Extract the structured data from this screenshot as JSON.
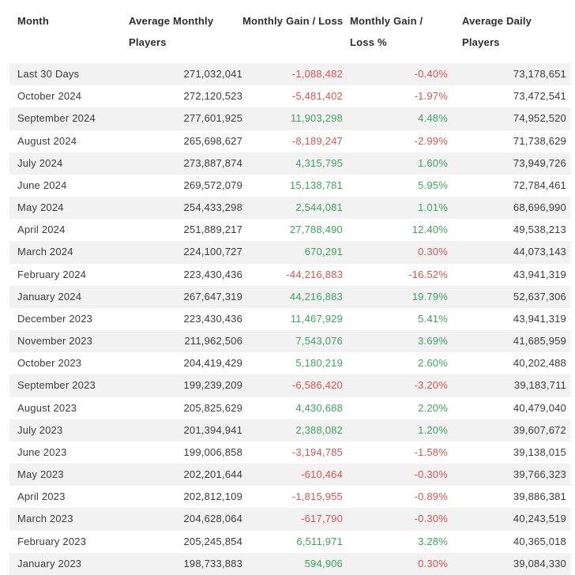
{
  "colors": {
    "positive": "#3da55c",
    "negative": "#d9544f",
    "header_text": "#2d2d2d",
    "body_text": "#3b3b3b",
    "stripe": "#f2f2f2"
  },
  "table": {
    "columns": [
      "Month",
      "Average Monthly Players",
      "Monthly Gain / Loss",
      "Monthly Gain / Loss %",
      "Average Daily Players"
    ],
    "rows": [
      {
        "month": "Last 30 Days",
        "avg_monthly_players": "271,032,041",
        "monthly_gain_loss": "-1,088,482",
        "monthly_gain_loss_pct": "-0.40%",
        "avg_daily_players": "73,178,651",
        "gain_color": "red",
        "pct_color": "red"
      },
      {
        "month": "October 2024",
        "avg_monthly_players": "272,120,523",
        "monthly_gain_loss": "-5,481,402",
        "monthly_gain_loss_pct": "-1.97%",
        "avg_daily_players": "73,472,541",
        "gain_color": "red",
        "pct_color": "red"
      },
      {
        "month": "September 2024",
        "avg_monthly_players": "277,601,925",
        "monthly_gain_loss": "11,903,298",
        "monthly_gain_loss_pct": "4.48%",
        "avg_daily_players": "74,952,520",
        "gain_color": "green",
        "pct_color": "green"
      },
      {
        "month": "August 2024",
        "avg_monthly_players": "265,698,627",
        "monthly_gain_loss": "-8,189,247",
        "monthly_gain_loss_pct": "-2.99%",
        "avg_daily_players": "71,738,629",
        "gain_color": "red",
        "pct_color": "red"
      },
      {
        "month": "July 2024",
        "avg_monthly_players": "273,887,874",
        "monthly_gain_loss": "4,315,795",
        "monthly_gain_loss_pct": "1.60%",
        "avg_daily_players": "73,949,726",
        "gain_color": "green",
        "pct_color": "green"
      },
      {
        "month": "June 2024",
        "avg_monthly_players": "269,572,079",
        "monthly_gain_loss": "15,138,781",
        "monthly_gain_loss_pct": "5.95%",
        "avg_daily_players": "72,784,461",
        "gain_color": "green",
        "pct_color": "green"
      },
      {
        "month": "May 2024",
        "avg_monthly_players": "254,433,298",
        "monthly_gain_loss": "2,544,081",
        "monthly_gain_loss_pct": "1.01%",
        "avg_daily_players": "68,696,990",
        "gain_color": "green",
        "pct_color": "green"
      },
      {
        "month": "April 2024",
        "avg_monthly_players": "251,889,217",
        "monthly_gain_loss": "27,788,490",
        "monthly_gain_loss_pct": "12.40%",
        "avg_daily_players": "49,538,213",
        "gain_color": "green",
        "pct_color": "green"
      },
      {
        "month": "March 2024",
        "avg_monthly_players": "224,100,727",
        "monthly_gain_loss": "670,291",
        "monthly_gain_loss_pct": "0.30%",
        "avg_daily_players": "44,073,143",
        "gain_color": "green",
        "pct_color": "red"
      },
      {
        "month": "February 2024",
        "avg_monthly_players": "223,430,436",
        "monthly_gain_loss": "-44,216,883",
        "monthly_gain_loss_pct": "-16.52%",
        "avg_daily_players": "43,941,319",
        "gain_color": "red",
        "pct_color": "red"
      },
      {
        "month": "January 2024",
        "avg_monthly_players": "267,647,319",
        "monthly_gain_loss": "44,216,883",
        "monthly_gain_loss_pct": "19.79%",
        "avg_daily_players": "52,637,306",
        "gain_color": "green",
        "pct_color": "green"
      },
      {
        "month": "December 2023",
        "avg_monthly_players": "223,430,436",
        "monthly_gain_loss": "11,467,929",
        "monthly_gain_loss_pct": "5.41%",
        "avg_daily_players": "43,941,319",
        "gain_color": "green",
        "pct_color": "green"
      },
      {
        "month": "November 2023",
        "avg_monthly_players": "211,962,506",
        "monthly_gain_loss": "7,543,076",
        "monthly_gain_loss_pct": "3.69%",
        "avg_daily_players": "41,685,959",
        "gain_color": "green",
        "pct_color": "green"
      },
      {
        "month": "October 2023",
        "avg_monthly_players": "204,419,429",
        "monthly_gain_loss": "5,180,219",
        "monthly_gain_loss_pct": "2.60%",
        "avg_daily_players": "40,202,488",
        "gain_color": "green",
        "pct_color": "green"
      },
      {
        "month": "September 2023",
        "avg_monthly_players": "199,239,209",
        "monthly_gain_loss": "-6,586,420",
        "monthly_gain_loss_pct": "-3.20%",
        "avg_daily_players": "39,183,711",
        "gain_color": "red",
        "pct_color": "red"
      },
      {
        "month": "August 2023",
        "avg_monthly_players": "205,825,629",
        "monthly_gain_loss": "4,430,688",
        "monthly_gain_loss_pct": "2.20%",
        "avg_daily_players": "40,479,040",
        "gain_color": "green",
        "pct_color": "green"
      },
      {
        "month": "July 2023",
        "avg_monthly_players": "201,394,941",
        "monthly_gain_loss": "2,388,082",
        "monthly_gain_loss_pct": "1.20%",
        "avg_daily_players": "39,607,672",
        "gain_color": "green",
        "pct_color": "green"
      },
      {
        "month": "June 2023",
        "avg_monthly_players": "199,006,858",
        "monthly_gain_loss": "-3,194,785",
        "monthly_gain_loss_pct": "-1.58%",
        "avg_daily_players": "39,138,015",
        "gain_color": "red",
        "pct_color": "red"
      },
      {
        "month": "May 2023",
        "avg_monthly_players": "202,201,644",
        "monthly_gain_loss": "-610,464",
        "monthly_gain_loss_pct": "-0.30%",
        "avg_daily_players": "39,766,323",
        "gain_color": "red",
        "pct_color": "red"
      },
      {
        "month": "April 2023",
        "avg_monthly_players": "202,812,109",
        "monthly_gain_loss": "-1,815,955",
        "monthly_gain_loss_pct": "-0.89%",
        "avg_daily_players": "39,886,381",
        "gain_color": "red",
        "pct_color": "red"
      },
      {
        "month": "March 2023",
        "avg_monthly_players": "204,628,064",
        "monthly_gain_loss": "-617,790",
        "monthly_gain_loss_pct": "-0.30%",
        "avg_daily_players": "40,243,519",
        "gain_color": "red",
        "pct_color": "red"
      },
      {
        "month": "February 2023",
        "avg_monthly_players": "205,245,854",
        "monthly_gain_loss": "6,511,971",
        "monthly_gain_loss_pct": "3.28%",
        "avg_daily_players": "40,365,018",
        "gain_color": "green",
        "pct_color": "green"
      },
      {
        "month": "January 2023",
        "avg_monthly_players": "198,733,883",
        "monthly_gain_loss": "594,906",
        "monthly_gain_loss_pct": "0.30%",
        "avg_daily_players": "39,084,330",
        "gain_color": "green",
        "pct_color": "red"
      }
    ]
  }
}
